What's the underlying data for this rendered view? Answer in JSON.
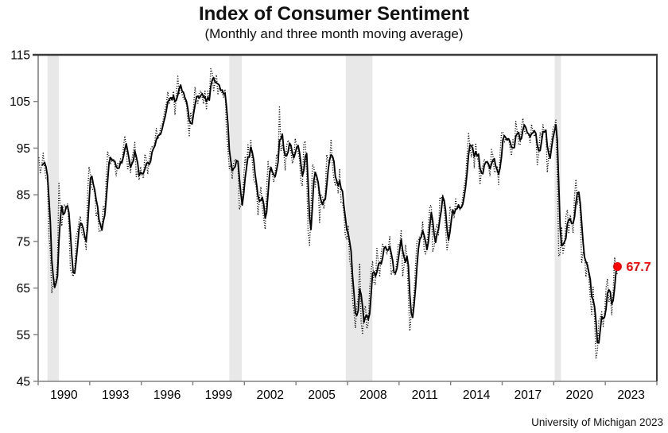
{
  "title": "Index of Consumer Sentiment",
  "subtitle": "(Monthly and three month moving average)",
  "attribution": "University of Michigan 2023",
  "colors": {
    "line_black": "#000000",
    "accent_red": "#ff0000",
    "recession_band": "#e8e8e8",
    "axis_gray": "#808080",
    "frame_dark": "#3b3b3b"
  },
  "chart_data": {
    "type": "line",
    "title": "Index of Consumer Sentiment",
    "subtitle": "(Monthly and three month moving average)",
    "xlabel": "",
    "ylabel": "",
    "grid": false,
    "legend_position": "none",
    "x_axis": {
      "range_years": [
        1990,
        2026
      ],
      "tick_interval_years": 3,
      "tick_labels": [
        "1990",
        "1993",
        "1996",
        "1999",
        "2002",
        "2005",
        "2008",
        "2011",
        "2014",
        "2017",
        "2020",
        "2023"
      ]
    },
    "y_axis": {
      "range": [
        45,
        115
      ],
      "ticks": [
        45,
        55,
        65,
        75,
        85,
        95,
        105,
        115
      ]
    },
    "recession_shading": {
      "color": "#e8e8e8",
      "intervals_year_frac": [
        [
          1990.54,
          1991.21
        ],
        [
          2001.12,
          2001.85
        ],
        [
          2007.9,
          2009.45
        ],
        [
          2020.05,
          2020.42
        ]
      ]
    },
    "series": [
      {
        "name": "Monthly index",
        "style": "dotted",
        "color": "#000000",
        "frequency": "monthly",
        "start": {
          "year": 1990,
          "month": 1
        },
        "end": {
          "year": 2023,
          "month": 9
        },
        "values": [
          93.0,
          89.5,
          91.3,
          93.9,
          90.6,
          88.3,
          88.2,
          76.4,
          72.8,
          63.9,
          66.0,
          65.5,
          66.8,
          70.4,
          87.7,
          81.8,
          78.3,
          82.1,
          82.9,
          82.0,
          83.0,
          78.3,
          69.1,
          68.2,
          67.5,
          68.8,
          76.0,
          77.2,
          79.2,
          80.4,
          76.6,
          76.1,
          75.6,
          73.3,
          85.3,
          91.0,
          89.3,
          86.6,
          85.9,
          85.6,
          80.3,
          81.5,
          77.0,
          77.3,
          77.9,
          82.7,
          81.2,
          88.2,
          94.3,
          93.2,
          91.5,
          92.6,
          92.8,
          91.2,
          89.0,
          91.7,
          91.5,
          92.7,
          91.6,
          95.1,
          97.6,
          95.1,
          90.3,
          92.5,
          89.8,
          92.7,
          94.4,
          96.2,
          88.9,
          90.2,
          88.2,
          91.0,
          89.3,
          88.5,
          93.7,
          92.7,
          89.4,
          92.4,
          94.7,
          95.3,
          94.7,
          96.5,
          99.2,
          96.9,
          97.4,
          99.7,
          100.0,
          101.4,
          103.2,
          104.5,
          107.1,
          104.4,
          106.0,
          105.6,
          107.2,
          102.1,
          106.6,
          110.4,
          106.5,
          108.7,
          106.5,
          105.6,
          105.2,
          104.4,
          100.9,
          97.4,
          102.7,
          100.5,
          103.9,
          108.1,
          105.7,
          104.6,
          106.8,
          107.3,
          106.0,
          104.5,
          107.2,
          103.2,
          107.2,
          105.4,
          112.0,
          111.3,
          107.1,
          109.2,
          110.7,
          106.4,
          108.3,
          107.3,
          106.8,
          105.8,
          107.6,
          98.4,
          94.7,
          90.6,
          91.5,
          88.4,
          92.0,
          92.6,
          92.4,
          91.5,
          81.8,
          82.7,
          83.9,
          88.8,
          93.0,
          90.7,
          95.7,
          93.0,
          96.9,
          92.4,
          88.1,
          87.6,
          86.1,
          80.6,
          84.2,
          86.7,
          82.4,
          79.9,
          77.6,
          86.0,
          92.1,
          89.7,
          90.9,
          89.3,
          87.7,
          89.6,
          93.7,
          92.6,
          103.8,
          94.4,
          95.8,
          94.2,
          90.2,
          95.6,
          96.7,
          95.9,
          94.2,
          91.7,
          92.8,
          97.1,
          95.5,
          94.1,
          92.6,
          87.7,
          86.9,
          96.0,
          96.5,
          89.1,
          76.9,
          74.2,
          81.6,
          91.5,
          91.2,
          86.7,
          88.9,
          87.4,
          79.1,
          84.9,
          84.7,
          82.0,
          85.4,
          93.6,
          92.1,
          91.7,
          96.9,
          91.3,
          88.4,
          87.1,
          88.3,
          85.3,
          90.4,
          83.4,
          83.4,
          80.9,
          76.1,
          75.5,
          78.4,
          70.8,
          69.5,
          62.6,
          59.8,
          56.4,
          61.2,
          63.0,
          70.3,
          57.6,
          55.3,
          60.1,
          61.2,
          56.3,
          57.3,
          65.1,
          68.7,
          70.8,
          66.0,
          65.7,
          73.5,
          70.6,
          67.4,
          72.5,
          74.4,
          73.6,
          73.6,
          72.2,
          73.6,
          76.0,
          67.8,
          68.9,
          68.2,
          67.7,
          71.6,
          74.5,
          74.2,
          77.5,
          67.5,
          69.8,
          74.3,
          71.5,
          63.7,
          55.8,
          59.4,
          60.9,
          64.1,
          69.9,
          75.0,
          75.3,
          76.2,
          76.4,
          79.3,
          73.2,
          72.3,
          74.3,
          78.3,
          82.6,
          82.7,
          72.9,
          73.8,
          77.6,
          78.6,
          76.4,
          84.5,
          84.1,
          85.1,
          82.1,
          77.5,
          73.2,
          75.1,
          82.5,
          81.2,
          81.6,
          80.0,
          84.1,
          81.9,
          82.5,
          81.8,
          82.5,
          84.6,
          86.9,
          88.8,
          93.6,
          98.1,
          95.4,
          93.0,
          95.9,
          90.7,
          96.1,
          93.1,
          91.9,
          87.2,
          90.0,
          91.3,
          92.6,
          92.0,
          91.7,
          91.0,
          89.0,
          94.7,
          93.5,
          90.0,
          89.8,
          91.2,
          87.2,
          93.8,
          98.2,
          98.5,
          96.3,
          96.9,
          97.0,
          97.1,
          95.0,
          93.4,
          96.8,
          95.1,
          100.7,
          98.5,
          95.9,
          95.7,
          99.7,
          101.4,
          98.8,
          98.0,
          98.2,
          97.9,
          96.2,
          100.1,
          98.6,
          97.5,
          98.3,
          91.2,
          93.8,
          98.4,
          97.2,
          100.0,
          98.2,
          98.4,
          89.8,
          93.2,
          95.5,
          96.8,
          99.3,
          99.8,
          101.0,
          89.1,
          71.8,
          72.3,
          78.1,
          72.5,
          74.1,
          80.4,
          81.8,
          76.9,
          80.7,
          79.0,
          76.8,
          84.9,
          88.3,
          82.9,
          85.5,
          81.2,
          70.3,
          72.8,
          71.7,
          67.4,
          70.6,
          67.2,
          62.8,
          59.4,
          65.2,
          58.4,
          50.0,
          51.5,
          58.2,
          58.6,
          59.9,
          56.8,
          59.7,
          64.9,
          67.0,
          62.0,
          63.5,
          59.2,
          64.4,
          71.6,
          69.5,
          67.7
        ]
      },
      {
        "name": "Three month moving average",
        "style": "solid",
        "color": "#000000",
        "derived_from": "Monthly index",
        "window_months": 3
      }
    ],
    "end_annotation": {
      "label": "67.7",
      "value": 67.7,
      "color": "#ff0000"
    }
  }
}
